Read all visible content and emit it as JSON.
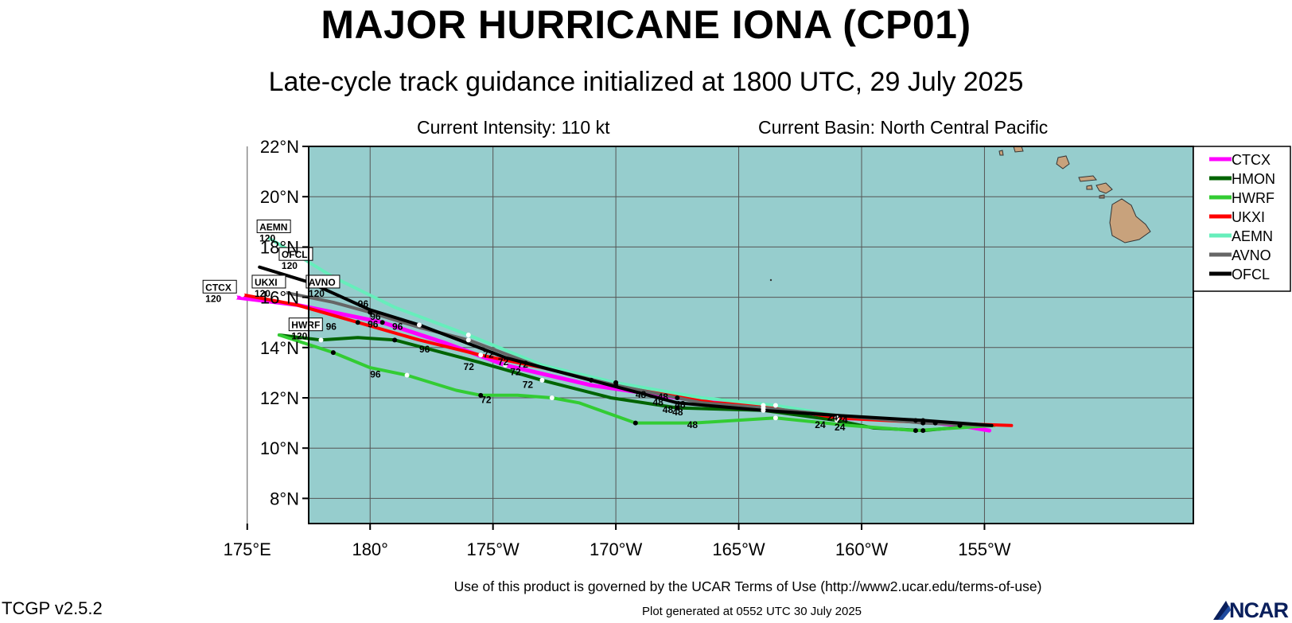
{
  "header": {
    "title": "MAJOR HURRICANE IONA (CP01)",
    "subtitle": "Late-cycle track guidance initialized at 1800 UTC, 29 July 2025",
    "intensity": "Current Intensity: 110 kt",
    "basin": "Current Basin: North Central Pacific"
  },
  "map": {
    "ocean_color": "#96cdcd",
    "land_color": "#c8a27c",
    "lat_range": [
      7,
      22
    ],
    "lon_range": [
      -182.5,
      -146.5
    ],
    "lat_ticks": [
      {
        "value": 22,
        "label": "22°N"
      },
      {
        "value": 20,
        "label": "20°N"
      },
      {
        "value": 18,
        "label": "18°N"
      },
      {
        "value": 16,
        "label": "16°N"
      },
      {
        "value": 14,
        "label": "14°N"
      },
      {
        "value": 12,
        "label": "12°N"
      },
      {
        "value": 10,
        "label": "10°N"
      },
      {
        "value": 8,
        "label": "8°N"
      }
    ],
    "lon_ticks": [
      {
        "value": -185,
        "label": "175°E"
      },
      {
        "value": -180,
        "label": "180°"
      },
      {
        "value": -175,
        "label": "175°W"
      },
      {
        "value": -170,
        "label": "170°W"
      },
      {
        "value": -165,
        "label": "165°W"
      },
      {
        "value": -160,
        "label": "160°W"
      },
      {
        "value": -155,
        "label": "155°W"
      }
    ]
  },
  "tracks": [
    {
      "name": "CTCX",
      "color": "#ff00ff",
      "width": 5,
      "points": [
        [
          -154.8,
          10.7
        ],
        [
          -156,
          10.9
        ],
        [
          -158,
          11.1
        ],
        [
          -161,
          11.2
        ],
        [
          -164,
          11.6
        ],
        [
          -167.5,
          12.0
        ],
        [
          -171,
          12.5
        ],
        [
          -174.5,
          13.3
        ],
        [
          -177,
          14.2
        ],
        [
          -179.5,
          15.0
        ],
        [
          -183,
          15.7
        ],
        [
          -185.5,
          16.0
        ]
      ],
      "label_pos": [
        -186.8,
        16.2
      ],
      "end_label": "120"
    },
    {
      "name": "HMON",
      "color": "#006400",
      "width": 4,
      "points": [
        [
          -155.2,
          10.9
        ],
        [
          -157.5,
          10.7
        ],
        [
          -159.5,
          10.8
        ],
        [
          -161,
          11.1
        ],
        [
          -164,
          11.5
        ],
        [
          -167.5,
          11.6
        ],
        [
          -170.2,
          12.0
        ],
        [
          -173,
          12.7
        ],
        [
          -175.5,
          13.4
        ],
        [
          -179,
          14.3
        ],
        [
          -180.5,
          14.4
        ],
        [
          -182,
          14.3
        ],
        [
          -183.7,
          14.5
        ]
      ]
    },
    {
      "name": "HWRF",
      "color": "#33cc33",
      "width": 4,
      "points": [
        [
          -154.6,
          10.9
        ],
        [
          -157.8,
          10.7
        ],
        [
          -160.5,
          10.9
        ],
        [
          -163.5,
          11.2
        ],
        [
          -166.8,
          11.0
        ],
        [
          -169.2,
          11.0
        ],
        [
          -171.5,
          11.8
        ],
        [
          -172.6,
          12.0
        ],
        [
          -174,
          12.1
        ],
        [
          -175.5,
          12.1
        ],
        [
          -176.5,
          12.3
        ],
        [
          -178.5,
          12.9
        ],
        [
          -180,
          13.2
        ],
        [
          -181.5,
          13.8
        ],
        [
          -183.7,
          14.5
        ]
      ],
      "label_pos": [
        -183.3,
        14.7
      ],
      "end_label": "120"
    },
    {
      "name": "UKXI",
      "color": "#ff0000",
      "width": 4,
      "points": [
        [
          -153.9,
          10.9
        ],
        [
          -157,
          11.0
        ],
        [
          -161,
          11.2
        ],
        [
          -164,
          11.7
        ],
        [
          -166,
          11.8
        ],
        [
          -170,
          12.6
        ],
        [
          -173,
          13.2
        ],
        [
          -175.5,
          13.7
        ],
        [
          -178,
          14.3
        ],
        [
          -180.5,
          15.0
        ],
        [
          -183,
          15.7
        ],
        [
          -185.2,
          16.1
        ]
      ],
      "label_pos": [
        -184.8,
        16.4
      ],
      "end_label": "120"
    },
    {
      "name": "AEMN",
      "color": "#66eebb",
      "width": 4,
      "points": [
        [
          -154.8,
          10.9
        ],
        [
          -157.8,
          11.1
        ],
        [
          -161,
          11.3
        ],
        [
          -163.5,
          11.7
        ],
        [
          -166.5,
          12.0
        ],
        [
          -170,
          12.6
        ],
        [
          -173,
          13.3
        ],
        [
          -176,
          14.5
        ],
        [
          -179,
          15.6
        ],
        [
          -181.5,
          16.8
        ],
        [
          -183,
          17.7
        ],
        [
          -184.2,
          18.4
        ]
      ],
      "label_pos": [
        -184.6,
        18.6
      ],
      "end_label": "120"
    },
    {
      "name": "AVNO",
      "color": "#666666",
      "width": 4,
      "points": [
        [
          -154.8,
          10.9
        ],
        [
          -157.5,
          11.0
        ],
        [
          -161,
          11.3
        ],
        [
          -164,
          11.6
        ],
        [
          -166.5,
          11.8
        ],
        [
          -170,
          12.5
        ],
        [
          -173,
          13.2
        ],
        [
          -176,
          14.3
        ],
        [
          -178,
          14.8
        ],
        [
          -180,
          15.4
        ],
        [
          -181.5,
          15.8
        ],
        [
          -183.5,
          16.2
        ]
      ],
      "label_pos": [
        -182.6,
        16.4
      ],
      "end_label": "120"
    },
    {
      "name": "OFCL",
      "color": "#000000",
      "width": 4,
      "points": [
        [
          -154.7,
          10.9
        ],
        [
          -157.5,
          11.1
        ],
        [
          -161,
          11.3
        ],
        [
          -164,
          11.5
        ],
        [
          -167.5,
          11.8
        ],
        [
          -171,
          12.7
        ],
        [
          -174.5,
          13.6
        ],
        [
          -178,
          14.9
        ],
        [
          -180,
          15.5
        ],
        [
          -182.5,
          16.6
        ],
        [
          -184.5,
          17.2
        ]
      ],
      "label_pos": [
        -183.7,
        17.5
      ],
      "end_label": "120"
    }
  ],
  "legend": [
    {
      "name": "CTCX",
      "color": "#ff00ff"
    },
    {
      "name": "HMON",
      "color": "#006400"
    },
    {
      "name": "HWRF",
      "color": "#33cc33"
    },
    {
      "name": "UKXI",
      "color": "#ff0000"
    },
    {
      "name": "AEMN",
      "color": "#66eebb"
    },
    {
      "name": "AVNO",
      "color": "#666666"
    },
    {
      "name": "OFCL",
      "color": "#000000"
    }
  ],
  "hour_labels": [
    {
      "text": "96",
      "lon": -180.5,
      "lat": 15.6
    },
    {
      "text": "96",
      "lon": -180.0,
      "lat": 15.1
    },
    {
      "text": "96",
      "lon": -180.1,
      "lat": 14.8
    },
    {
      "text": "96",
      "lon": -181.8,
      "lat": 14.7
    },
    {
      "text": "96",
      "lon": -179.1,
      "lat": 14.7
    },
    {
      "text": "96",
      "lon": -178.0,
      "lat": 13.8
    },
    {
      "text": "96",
      "lon": -180.0,
      "lat": 12.8
    },
    {
      "text": "72",
      "lon": -175.4,
      "lat": 13.6
    },
    {
      "text": "72",
      "lon": -174.8,
      "lat": 13.3
    },
    {
      "text": "72",
      "lon": -174.0,
      "lat": 13.2
    },
    {
      "text": "72",
      "lon": -176.2,
      "lat": 13.1
    },
    {
      "text": "72",
      "lon": -174.3,
      "lat": 12.9
    },
    {
      "text": "72",
      "lon": -173.8,
      "lat": 12.4
    },
    {
      "text": "72",
      "lon": -175.5,
      "lat": 11.8
    },
    {
      "text": "48",
      "lon": -169.2,
      "lat": 12.0
    },
    {
      "text": "48",
      "lon": -168.3,
      "lat": 11.9
    },
    {
      "text": "48",
      "lon": -168.5,
      "lat": 11.7
    },
    {
      "text": "48",
      "lon": -167.6,
      "lat": 11.6
    },
    {
      "text": "48",
      "lon": -168.1,
      "lat": 11.4
    },
    {
      "text": "48",
      "lon": -167.7,
      "lat": 11.3
    },
    {
      "text": "48",
      "lon": -167.1,
      "lat": 10.8
    },
    {
      "text": "24",
      "lon": -161.4,
      "lat": 11.1
    },
    {
      "text": "24",
      "lon": -161.0,
      "lat": 11.0
    },
    {
      "text": "24",
      "lon": -161.9,
      "lat": 10.8
    },
    {
      "text": "24",
      "lon": -161.1,
      "lat": 10.7
    }
  ],
  "footer": {
    "terms": "Use of this product is governed by the UCAR Terms of Use (http://www2.ucar.edu/terms-of-use)",
    "version": "TCGP v2.5.2",
    "generated": "Plot generated at 0552 UTC   30 July 2025",
    "logo": "NCAR"
  }
}
